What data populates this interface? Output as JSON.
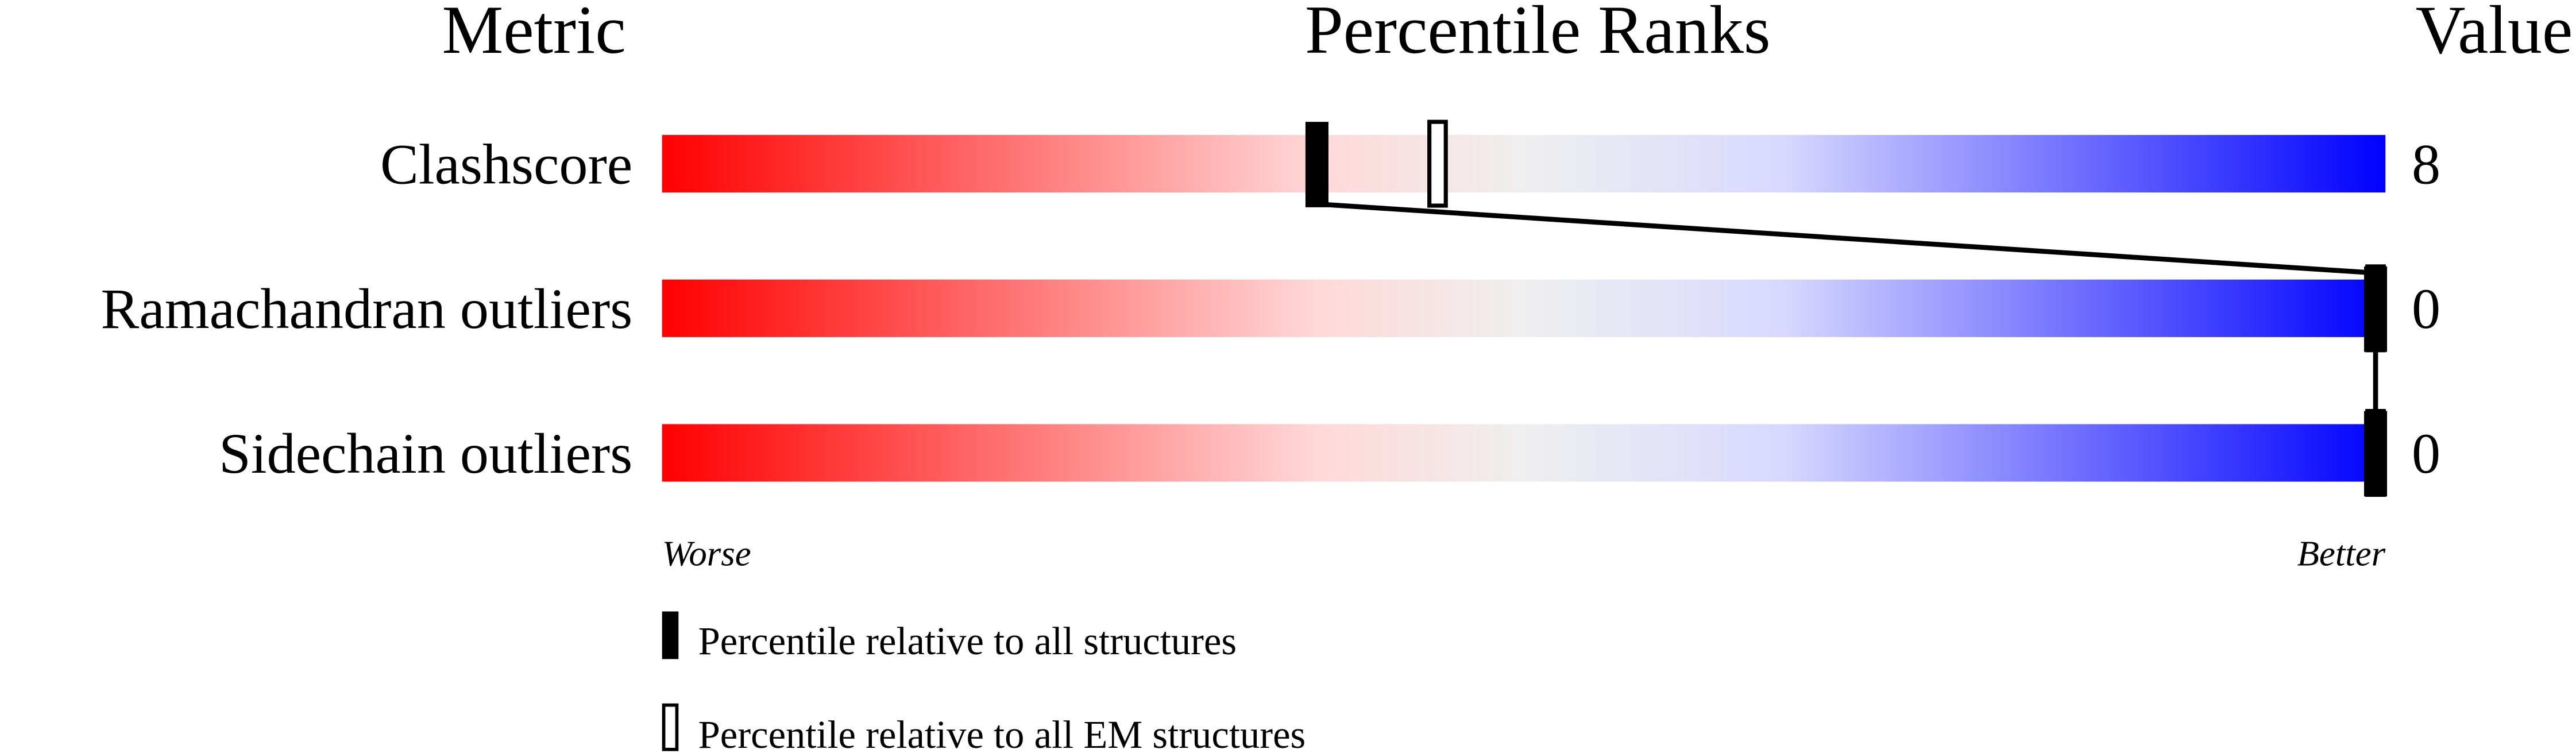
{
  "chart_data": {
    "type": "percentile-bar",
    "headers": {
      "metric": "Metric",
      "ranks": "Percentile Ranks",
      "value": "Value"
    },
    "xlim": [
      0,
      100
    ],
    "axis_labels": {
      "left": "Worse",
      "right": "Better"
    },
    "gradient_colors": [
      "#ff0000",
      "#ffd8d8",
      "#efefef",
      "#d8d8ff",
      "#0000ff"
    ],
    "rows": [
      {
        "metric": "Clashscore",
        "value": "8",
        "percentile_all": 38,
        "percentile_em": 45
      },
      {
        "metric": "Ramachandran outliers",
        "value": "0",
        "percentile_all": 100,
        "percentile_em": 100
      },
      {
        "metric": "Sidechain outliers",
        "value": "0",
        "percentile_all": 100,
        "percentile_em": 100
      }
    ],
    "legend": [
      {
        "marker": "filled",
        "label": "Percentile relative to all structures"
      },
      {
        "marker": "hollow",
        "label": "Percentile relative to all EM structures"
      }
    ]
  }
}
